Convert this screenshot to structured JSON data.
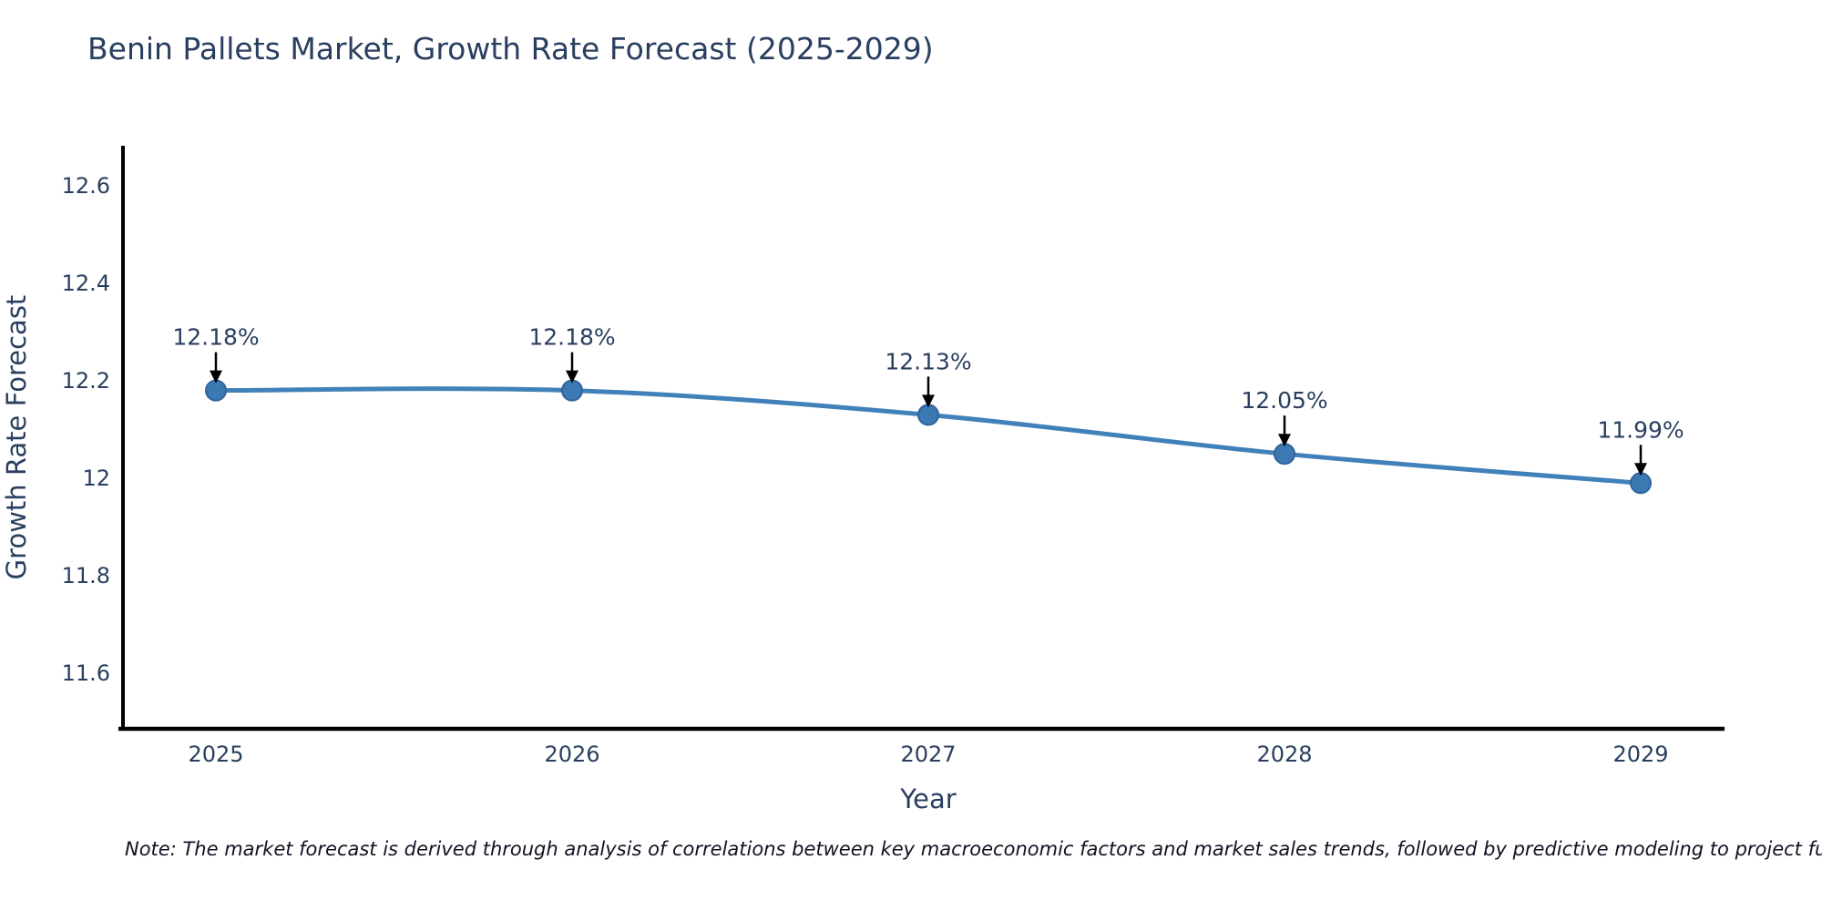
{
  "title": "Benin Pallets Market, Growth Rate Forecast (2025-2029)",
  "note": "Note: The market forecast is derived through analysis of correlations between key macroeconomic factors and market sales trends, followed by predictive modeling to project future sal",
  "chart_data": {
    "type": "line",
    "title": "Benin Pallets Market, Growth Rate Forecast (2025-2029)",
    "x": [
      "2025",
      "2026",
      "2027",
      "2028",
      "2029"
    ],
    "series": [
      {
        "name": "Growth Rate Forecast",
        "values": [
          12.18,
          12.18,
          12.13,
          12.05,
          11.99
        ]
      }
    ],
    "point_labels": [
      "12.18%",
      "12.18%",
      "12.13%",
      "12.05%",
      "11.99%"
    ],
    "xlabel": "Year",
    "ylabel": "Growth Rate Forecast",
    "yticks": [
      11.6,
      11.8,
      12,
      12.2,
      12.4,
      12.6
    ],
    "ytick_labels": [
      "11.6",
      "11.8",
      "12",
      "12.2",
      "12.4",
      "12.6"
    ],
    "ylim": [
      11.486,
      12.682
    ],
    "grid": false,
    "legend": "none",
    "line_style": "spline",
    "annotation_style": "down-arrow",
    "colors": {
      "line": "#4181b9",
      "marker": "#3c79b3",
      "marker_edge": "#2f649b",
      "axis": "#000000",
      "text": "#2a3f5f",
      "annotation": "#000000",
      "note": "#111322",
      "background": "#ffffff"
    }
  }
}
